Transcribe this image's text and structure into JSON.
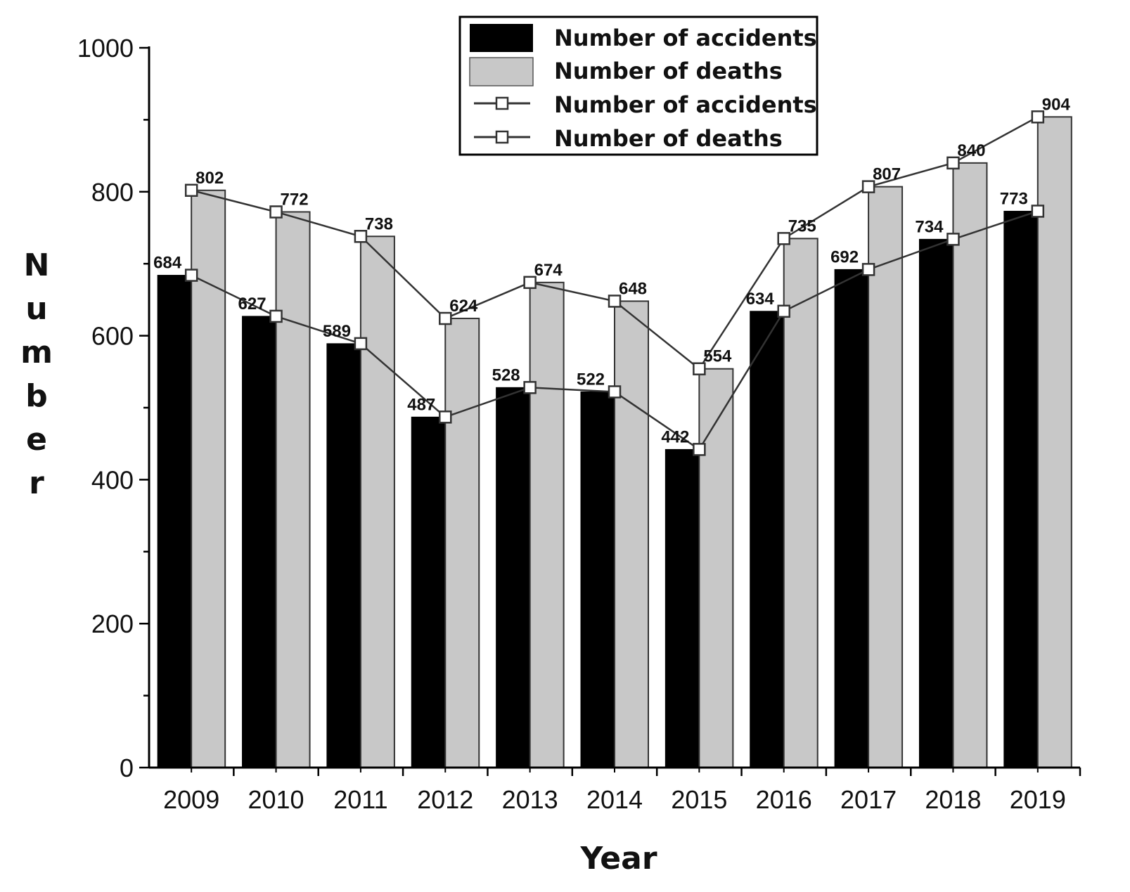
{
  "chart_data": {
    "type": "bar",
    "categories": [
      "2009",
      "2010",
      "2011",
      "2012",
      "2013",
      "2014",
      "2015",
      "2016",
      "2017",
      "2018",
      "2019"
    ],
    "series": [
      {
        "name": "Number of accidents",
        "kind": "bar",
        "color": "#000000",
        "values": [
          684,
          627,
          589,
          487,
          528,
          522,
          442,
          634,
          692,
          734,
          773
        ]
      },
      {
        "name": "Number of deaths",
        "kind": "bar",
        "color": "#c8c8c8",
        "values": [
          802,
          772,
          738,
          624,
          674,
          648,
          554,
          735,
          807,
          840,
          904
        ]
      },
      {
        "name": "Number of accidents",
        "kind": "line",
        "marker": "hollow-square",
        "color": "#333333",
        "values": [
          684,
          627,
          589,
          487,
          528,
          522,
          442,
          634,
          692,
          734,
          773
        ]
      },
      {
        "name": "Number of deaths",
        "kind": "line",
        "marker": "hollow-square",
        "color": "#333333",
        "values": [
          802,
          772,
          738,
          624,
          674,
          648,
          554,
          735,
          807,
          840,
          904
        ]
      }
    ],
    "data_labels": {
      "accidents": [
        "684",
        "627",
        "589",
        "487",
        "528",
        "522",
        "442",
        "634",
        "692",
        "734",
        "773"
      ],
      "deaths": [
        "802",
        "772",
        "738",
        "624",
        "674",
        "648",
        "554",
        "735",
        "807",
        "840",
        "904"
      ]
    },
    "xlabel": "Year",
    "ylabel": "Number",
    "ylim": [
      0,
      1000
    ],
    "yticks": [
      "0",
      "200",
      "400",
      "600",
      "800",
      "1000"
    ],
    "grid": false,
    "legend_position": "top"
  }
}
